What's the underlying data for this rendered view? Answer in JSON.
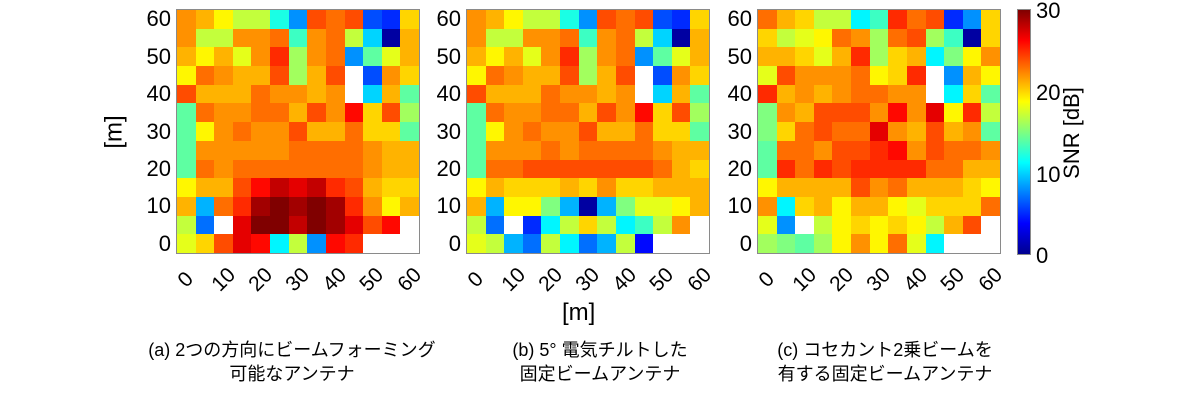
{
  "chart_data": {
    "type": "heatmap",
    "colormap": "jet",
    "clim": [
      0,
      30
    ],
    "xlabel": "[m]",
    "ylabel": "[m]",
    "x_ticks": [
      "0",
      "10",
      "20",
      "30",
      "40",
      "50",
      "60"
    ],
    "y_ticks": [
      "60",
      "50",
      "40",
      "30",
      "20",
      "10",
      "0"
    ],
    "grid_size": [
      13,
      13
    ],
    "colorbar": {
      "label": "SNR [dB]",
      "ticks": [
        "30",
        "20",
        "10",
        "0"
      ]
    },
    "panels": [
      {
        "id": "a",
        "caption_line1": "(a) 2つの方向にビームフォーミング",
        "caption_line2": "可能なアンテナ",
        "rows_top_to_bottom": [
          [
            22,
            21,
            19,
            17,
            17,
            12,
            8,
            24,
            23,
            24,
            6,
            5,
            20
          ],
          [
            22,
            17,
            17,
            22,
            22,
            23,
            13,
            22,
            23,
            17,
            10,
            1,
            21
          ],
          [
            21,
            19,
            21,
            18,
            22,
            25,
            16,
            22,
            23,
            8,
            14,
            18,
            21
          ],
          [
            19,
            23,
            22,
            21,
            21,
            24,
            16,
            21,
            24,
            null,
            6,
            22,
            20
          ],
          [
            24,
            21,
            21,
            21,
            23,
            22,
            22,
            21,
            22,
            null,
            10,
            21,
            14
          ],
          [
            14,
            23,
            22,
            22,
            23,
            23,
            21,
            24,
            22,
            26,
            20,
            24,
            16
          ],
          [
            14,
            19,
            22,
            23,
            22,
            22,
            24,
            21,
            21,
            23,
            20,
            20,
            14
          ],
          [
            14,
            22,
            22,
            22,
            22,
            22,
            23,
            23,
            23,
            23,
            22,
            21,
            21
          ],
          [
            14,
            23,
            22,
            23,
            23,
            23,
            23,
            23,
            23,
            23,
            22,
            21,
            21
          ],
          [
            19,
            21,
            21,
            24,
            26,
            28,
            27,
            28,
            25,
            24,
            21,
            20,
            20
          ],
          [
            21,
            9,
            23,
            25,
            29,
            30,
            29,
            30,
            29,
            25,
            22,
            19,
            21
          ],
          [
            17,
            7,
            null,
            27,
            30,
            30,
            28,
            30,
            29,
            27,
            24,
            26,
            null
          ],
          [
            18,
            20,
            24,
            27,
            26,
            11,
            17,
            8,
            26,
            25,
            null,
            null,
            null
          ]
        ]
      },
      {
        "id": "b",
        "caption_line1": "(b) 5° 電気チルトした",
        "caption_line2": "固定ビームアンテナ",
        "rows_top_to_bottom": [
          [
            22,
            21,
            19,
            17,
            17,
            12,
            8,
            24,
            23,
            24,
            6,
            5,
            20
          ],
          [
            22,
            17,
            17,
            22,
            22,
            23,
            13,
            22,
            23,
            17,
            10,
            1,
            21
          ],
          [
            21,
            19,
            21,
            18,
            22,
            25,
            16,
            22,
            23,
            8,
            14,
            18,
            21
          ],
          [
            19,
            23,
            22,
            21,
            21,
            24,
            16,
            21,
            24,
            null,
            6,
            22,
            20
          ],
          [
            24,
            21,
            21,
            21,
            23,
            22,
            22,
            21,
            22,
            null,
            10,
            21,
            14
          ],
          [
            14,
            23,
            22,
            22,
            23,
            23,
            21,
            24,
            22,
            26,
            20,
            24,
            16
          ],
          [
            14,
            19,
            22,
            23,
            22,
            22,
            24,
            21,
            21,
            23,
            20,
            20,
            14
          ],
          [
            14,
            22,
            22,
            22,
            23,
            22,
            23,
            23,
            23,
            23,
            22,
            21,
            21
          ],
          [
            14,
            23,
            23,
            24,
            24,
            24,
            24,
            24,
            24,
            24,
            23,
            21,
            20
          ],
          [
            19,
            21,
            20,
            20,
            20,
            21,
            20,
            22,
            20,
            20,
            21,
            21,
            21
          ],
          [
            21,
            9,
            19,
            19,
            15,
            9,
            1,
            9,
            15,
            18,
            18,
            19,
            21
          ],
          [
            17,
            7,
            null,
            5,
            11,
            17,
            20,
            17,
            11,
            13,
            17,
            22,
            null
          ],
          [
            18,
            17,
            9,
            7,
            17,
            11,
            7,
            9,
            17,
            4,
            null,
            null,
            null
          ]
        ]
      },
      {
        "id": "c",
        "caption_line1": "(c) コセカント2乗ビームを",
        "caption_line2": "有する固定ビームアンテナ",
        "rows_top_to_bottom": [
          [
            23,
            21,
            20,
            17,
            17,
            11,
            13,
            25,
            23,
            24,
            5,
            8,
            20
          ],
          [
            20,
            17,
            18,
            19,
            23,
            22,
            16,
            23,
            24,
            16,
            13,
            1,
            20
          ],
          [
            21,
            21,
            20,
            18,
            21,
            25,
            16,
            20,
            21,
            11,
            15,
            19,
            22
          ],
          [
            18,
            24,
            22,
            22,
            22,
            23,
            19,
            20,
            25,
            null,
            8,
            21,
            19
          ],
          [
            25,
            21,
            22,
            21,
            22,
            23,
            23,
            22,
            22,
            null,
            11,
            20,
            14
          ],
          [
            15,
            22,
            21,
            24,
            24,
            24,
            22,
            26,
            22,
            27,
            19,
            25,
            17
          ],
          [
            15,
            20,
            23,
            24,
            23,
            23,
            27,
            22,
            21,
            24,
            21,
            22,
            14
          ],
          [
            14,
            23,
            23,
            22,
            24,
            24,
            25,
            26,
            22,
            24,
            23,
            23,
            22
          ],
          [
            14,
            25,
            23,
            25,
            24,
            25,
            25,
            25,
            25,
            23,
            23,
            21,
            21
          ],
          [
            19,
            21,
            21,
            21,
            21,
            24,
            22,
            23,
            21,
            21,
            21,
            20,
            19
          ],
          [
            22,
            11,
            20,
            21,
            19,
            21,
            21,
            19,
            18,
            20,
            20,
            20,
            23
          ],
          [
            18,
            8,
            null,
            17,
            19,
            20,
            19,
            20,
            19,
            17,
            21,
            24,
            null
          ],
          [
            16,
            15,
            14,
            16,
            19,
            22,
            19,
            23,
            18,
            11,
            null,
            null,
            null
          ]
        ]
      }
    ]
  }
}
